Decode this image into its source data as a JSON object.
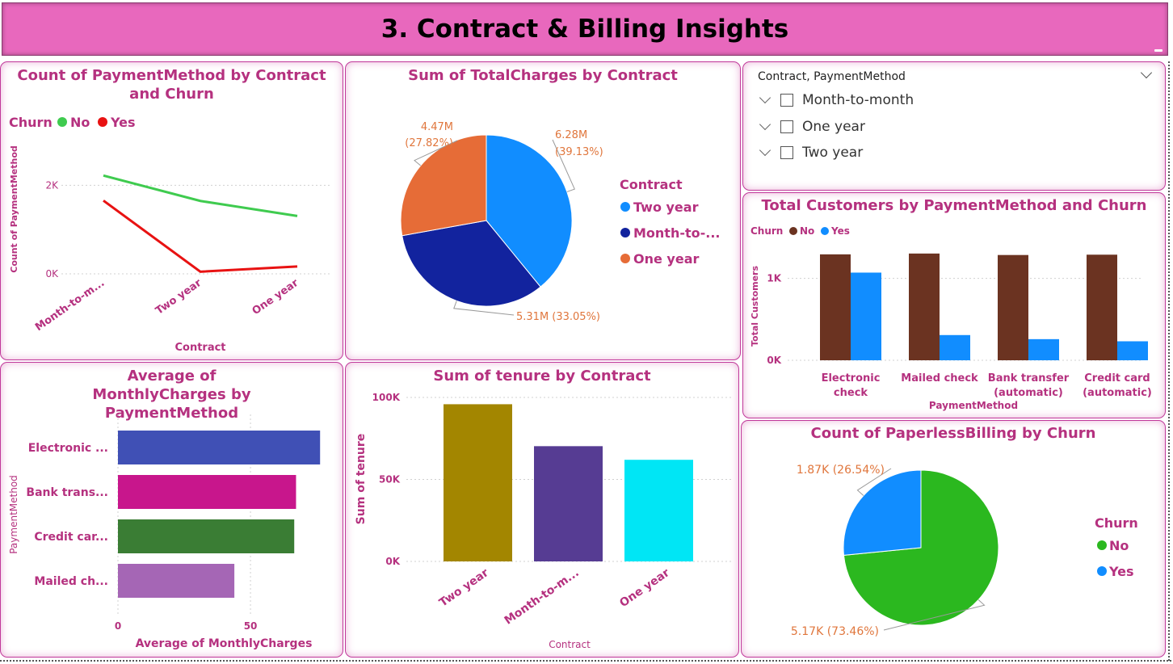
{
  "header": {
    "title": "3. Contract & Billing Insights"
  },
  "slicer": {
    "title": "Contract, PaymentMethod",
    "items": [
      "Month-to-month",
      "One year",
      "Two year"
    ]
  },
  "chart_data": [
    {
      "id": "line",
      "type": "line",
      "title": "Count of PaymentMethod by Contract and Churn",
      "xlabel": "Contract",
      "ylabel": "Count of PaymentMethod",
      "legend_title": "Churn",
      "categories": [
        "Month-to-m...",
        "Two year",
        "One year"
      ],
      "series": [
        {
          "name": "No",
          "color": "#3fcb4f",
          "values": [
            2220,
            1647,
            1307
          ]
        },
        {
          "name": "Yes",
          "color": "#e81212",
          "values": [
            1655,
            48,
            166
          ]
        }
      ],
      "yticks": [
        "0K",
        "2K"
      ],
      "ytick_values": [
        0,
        2000
      ],
      "ylim": [
        0,
        2500
      ],
      "grid": true,
      "legend_position": "top-left"
    },
    {
      "id": "pie_charges",
      "type": "pie",
      "title": "Sum of TotalCharges by Contract",
      "legend_title": "Contract",
      "legend_labels": [
        "Two year",
        "Month-to-...",
        "One year"
      ],
      "slices": [
        {
          "name": "Two year",
          "value": 6.28,
          "color": "#118dff",
          "label_value": "6.28M",
          "label_pct": "(39.13%)"
        },
        {
          "name": "Month-to-month",
          "value": 5.31,
          "color": "#12239e",
          "label_value": "5.31M (33.05%)",
          "label_pct": ""
        },
        {
          "name": "One year",
          "value": 4.47,
          "color": "#e66c37",
          "label_value": "4.47M",
          "label_pct": "(27.82%)"
        }
      ],
      "legend_position": "right"
    },
    {
      "id": "grouped",
      "type": "bar",
      "title": "Total Customers by PaymentMethod and Churn",
      "xlabel": "PaymentMethod",
      "ylabel": "Total Customers",
      "legend_title": "Churn",
      "categories": [
        [
          "Electronic",
          "check"
        ],
        [
          "Mailed check"
        ],
        [
          "Bank transfer",
          "(automatic)"
        ],
        [
          "Credit card",
          "(automatic)"
        ]
      ],
      "series": [
        {
          "name": "No",
          "color": "#6b3321",
          "values": [
            1294,
            1304,
            1286,
            1290
          ]
        },
        {
          "name": "Yes",
          "color": "#118dff",
          "values": [
            1071,
            308,
            258,
            232
          ]
        }
      ],
      "yticks": [
        "0K",
        "1K"
      ],
      "ytick_values": [
        0,
        1000
      ],
      "ylim": [
        0,
        1500
      ],
      "legend_position": "top-left"
    },
    {
      "id": "hbar",
      "type": "bar",
      "orientation": "horizontal",
      "title": "Average of MonthlyCharges by PaymentMethod",
      "xlabel": "Average of MonthlyCharges",
      "ylabel": "PaymentMethod",
      "categories": [
        "Electronic ...",
        "Bank trans...",
        "Credit car...",
        "Mailed ch..."
      ],
      "values": [
        76.26,
        67.19,
        66.51,
        43.92
      ],
      "colors": [
        "#4050b5",
        "#c8168c",
        "#3a7d34",
        "#a566b5"
      ],
      "xticks": [
        "0",
        "50"
      ],
      "xtick_values": [
        0,
        50
      ],
      "xlim": [
        0,
        76.5
      ],
      "grid": true
    },
    {
      "id": "vbar",
      "type": "bar",
      "title": "Sum of tenure by Contract",
      "xlabel": "Contract",
      "ylabel": "Sum of tenure",
      "categories": [
        "Two year",
        "Month-to-m...",
        "One year"
      ],
      "values": [
        95853,
        70276,
        61964
      ],
      "colors": [
        "#a38600",
        "#563c93",
        "#00e6f5"
      ],
      "yticks": [
        "0K",
        "50K",
        "100K"
      ],
      "ytick_values": [
        0,
        50000,
        100000
      ],
      "ylim": [
        0,
        100000
      ],
      "grid": true
    },
    {
      "id": "pie_paperless",
      "type": "pie",
      "title": "Count of PaperlessBilling by Churn",
      "legend_title": "Churn",
      "legend_labels": [
        "No",
        "Yes"
      ],
      "slices": [
        {
          "name": "No",
          "value": 5.17,
          "color": "#2bb81f",
          "label_value": "5.17K (73.46%)",
          "label_pct": ""
        },
        {
          "name": "Yes",
          "value": 1.87,
          "color": "#118dff",
          "label_value": "1.87K (26.54%)",
          "label_pct": ""
        }
      ],
      "legend_position": "right"
    }
  ]
}
